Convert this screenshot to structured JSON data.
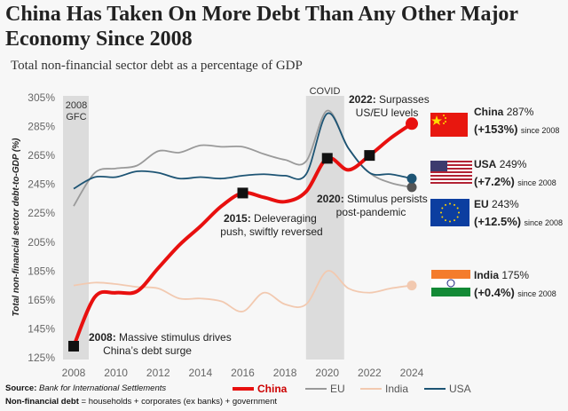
{
  "title": "China Has Taken On More Debt Than Any Other Major Economy Since 2008",
  "subtitle": "Total non-financial sector debt as a percentage of GDP",
  "source_label": "Source:",
  "source": "Bank for International Settlements",
  "note_label": "Non-financial debt",
  "note": "= households + corporates (ex banks) + government",
  "chart_data": {
    "type": "line",
    "ylabel": "Total non-financial sector debt-to-GDP (%)",
    "ylim": [
      125,
      305
    ],
    "yticks": [
      "125%",
      "145%",
      "165%",
      "185%",
      "205%",
      "225%",
      "245%",
      "265%",
      "285%",
      "305%"
    ],
    "xlim": [
      2008,
      2024
    ],
    "xticks": [
      "2008",
      "2010",
      "2012",
      "2014",
      "2016",
      "2018",
      "2020",
      "2022",
      "2024"
    ],
    "x": [
      2008,
      2009,
      2010,
      2011,
      2012,
      2013,
      2014,
      2015,
      2016,
      2017,
      2018,
      2019,
      2020,
      2021,
      2022,
      2023,
      2024
    ],
    "series": [
      {
        "name": "China",
        "color": "#e8100f",
        "values": [
          133,
          167,
          170,
          171,
          187,
          203,
          216,
          230,
          239,
          236,
          233,
          240,
          263,
          255,
          265,
          277,
          287
        ]
      },
      {
        "name": "EU",
        "color": "#9a9a9a",
        "values": [
          230,
          253,
          256,
          258,
          268,
          267,
          272,
          271,
          271,
          266,
          262,
          261,
          296,
          270,
          253,
          246,
          243
        ]
      },
      {
        "name": "India",
        "color": "#f2c9b0",
        "values": [
          175,
          177,
          176,
          174,
          173,
          166,
          166,
          164,
          157,
          170,
          162,
          162,
          185,
          173,
          170,
          173,
          175
        ]
      },
      {
        "name": "USA",
        "color": "#1d5474",
        "values": [
          242,
          250,
          250,
          254,
          253,
          249,
          250,
          249,
          251,
          252,
          251,
          252,
          294,
          270,
          253,
          252,
          249
        ]
      }
    ],
    "shaded_periods": [
      {
        "label1": "2008",
        "label2": "GFC",
        "from": 2008,
        "to": 2008.6
      },
      {
        "label1": "COVID",
        "label2": "",
        "from": 2019.5,
        "to": 2020.8
      }
    ],
    "annotations": [
      {
        "year": 2008,
        "bold": "2008:",
        "text": "Massive stimulus drives",
        "text2": "China’s debt surge"
      },
      {
        "year": 2016,
        "bold": "2015:",
        "text": "Deleveraging",
        "text2": "push, swiftly reversed"
      },
      {
        "year": 2020,
        "bold": "2020:",
        "text": "Stimulus persists",
        "text2": "post-pandemic"
      },
      {
        "year": 2022,
        "bold": "2022:",
        "text": "Surpasses",
        "text2": "US/EU levels"
      }
    ],
    "legend_position": "bottom"
  },
  "side_labels": [
    {
      "name": "China",
      "value": "287%",
      "change": "(+153%)",
      "since": "since 2008"
    },
    {
      "name": "USA",
      "value": "249%",
      "change": "(+7.2%)",
      "since": "since 2008"
    },
    {
      "name": "EU",
      "value": "243%",
      "change": "(+12.5%)",
      "since": "since 2008"
    },
    {
      "name": "India",
      "value": "175%",
      "change": "(+0.4%)",
      "since": "since 2008"
    }
  ]
}
